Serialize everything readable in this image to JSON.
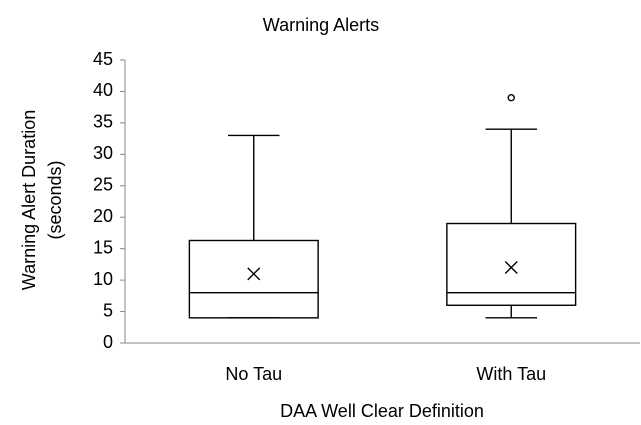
{
  "chart_data": {
    "type": "box",
    "title": "Warning Alerts",
    "xlabel": "DAA Well Clear Definition",
    "ylabel": [
      "Warning Alert Duration",
      "(seconds)"
    ],
    "categories": [
      "No Tau",
      "With Tau"
    ],
    "boxes": [
      {
        "min": 4,
        "q1": 4,
        "median": 8,
        "q3": 16.3,
        "max": 33,
        "mean": 11,
        "outliers": []
      },
      {
        "min": 4,
        "q1": 6,
        "median": 8,
        "q3": 19,
        "max": 34,
        "mean": 12,
        "outliers": [
          39
        ]
      }
    ],
    "color": "#000000",
    "ylim": [
      0,
      45
    ],
    "yticks": [
      0,
      5,
      10,
      15,
      20,
      25,
      30,
      35,
      40,
      45
    ],
    "grid": false
  }
}
